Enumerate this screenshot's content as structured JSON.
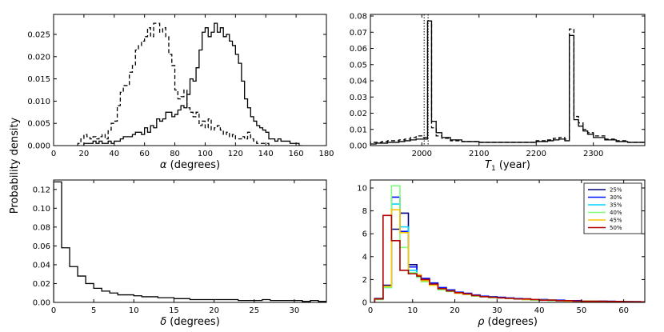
{
  "figure": {
    "ylabel": "Probability density"
  },
  "chart_data": [
    {
      "type": "line",
      "drawstyle": "steps",
      "title": "",
      "xlabel_symbol": "α",
      "xlabel_text": " (degrees)",
      "xlim": [
        0,
        180
      ],
      "ylim": [
        0,
        0.0295
      ],
      "xticks": [
        0,
        20,
        40,
        60,
        80,
        100,
        120,
        140,
        160,
        180
      ],
      "yticks": [
        0.0,
        0.005,
        0.01,
        0.015,
        0.02,
        0.025
      ],
      "ytick_labels": [
        "0.000",
        "0.005",
        "0.010",
        "0.015",
        "0.020",
        "0.025"
      ],
      "series": [
        {
          "name": "dashed",
          "dash": "5,3",
          "color": "#000000",
          "x": [
            16,
            18,
            20,
            22,
            24,
            26,
            28,
            30,
            32,
            34,
            36,
            38,
            40,
            42,
            44,
            46,
            48,
            50,
            52,
            54,
            56,
            58,
            60,
            62,
            64,
            66,
            68,
            70,
            72,
            74,
            76,
            78,
            80,
            82,
            84,
            86,
            88,
            90,
            92,
            94,
            96,
            98,
            100,
            102,
            104,
            106,
            108,
            110,
            112,
            114,
            116,
            118,
            120,
            122,
            124,
            126,
            128,
            130,
            132,
            134,
            136,
            138,
            140,
            142
          ],
          "values": [
            0.0005,
            0.0015,
            0.0025,
            0.002,
            0.0015,
            0.002,
            0.0015,
            0.002,
            0.0025,
            0.0015,
            0.0035,
            0.005,
            0.0055,
            0.009,
            0.012,
            0.0135,
            0.0135,
            0.0165,
            0.018,
            0.0215,
            0.0225,
            0.0235,
            0.0245,
            0.0265,
            0.0245,
            0.0275,
            0.0275,
            0.0255,
            0.0265,
            0.0245,
            0.0205,
            0.018,
            0.0125,
            0.0105,
            0.011,
            0.0125,
            0.0085,
            0.0075,
            0.0065,
            0.0075,
            0.0045,
            0.0055,
            0.004,
            0.006,
            0.0035,
            0.004,
            0.0045,
            0.0035,
            0.0025,
            0.003,
            0.002,
            0.0025,
            0.0015,
            0.0015,
            0.002,
            0.0015,
            0.003,
            0.0015,
            0.001,
            0.0005,
            0.0005,
            0.0005,
            0.0005,
            0.0
          ]
        },
        {
          "name": "solid",
          "dash": "",
          "color": "#000000",
          "x": [
            20,
            22,
            24,
            26,
            28,
            30,
            32,
            34,
            36,
            38,
            40,
            42,
            44,
            46,
            48,
            50,
            52,
            54,
            56,
            58,
            60,
            62,
            64,
            66,
            68,
            70,
            72,
            74,
            76,
            78,
            80,
            82,
            84,
            86,
            88,
            90,
            92,
            94,
            96,
            98,
            100,
            102,
            104,
            106,
            108,
            110,
            112,
            114,
            116,
            118,
            120,
            122,
            124,
            126,
            128,
            130,
            132,
            134,
            136,
            138,
            140,
            142,
            144,
            146,
            148,
            150,
            152,
            154,
            156,
            158,
            160,
            162
          ],
          "values": [
            0.0005,
            0.0005,
            0.0005,
            0.001,
            0.0005,
            0.001,
            0.0005,
            0.0005,
            0.001,
            0.0005,
            0.001,
            0.001,
            0.0015,
            0.002,
            0.002,
            0.002,
            0.0025,
            0.003,
            0.003,
            0.0025,
            0.004,
            0.003,
            0.0045,
            0.004,
            0.006,
            0.0055,
            0.006,
            0.0075,
            0.0075,
            0.0065,
            0.007,
            0.008,
            0.009,
            0.0085,
            0.0115,
            0.015,
            0.0145,
            0.0175,
            0.0215,
            0.0255,
            0.0265,
            0.0245,
            0.0255,
            0.0275,
            0.0255,
            0.0265,
            0.0245,
            0.025,
            0.0235,
            0.0225,
            0.0205,
            0.0185,
            0.0145,
            0.0105,
            0.0085,
            0.0065,
            0.0055,
            0.0045,
            0.004,
            0.0035,
            0.003,
            0.0015,
            0.0015,
            0.001,
            0.0015,
            0.001,
            0.001,
            0.001,
            0.0005,
            0.0005,
            0.0005,
            0.0
          ]
        }
      ]
    },
    {
      "type": "line",
      "drawstyle": "steps",
      "title": "",
      "xlabel_symbol": "T",
      "xlabel_sub": "1",
      "xlabel_text": " (year)",
      "xlim": [
        1910,
        2390
      ],
      "ylim": [
        0,
        0.081
      ],
      "xticks": [
        2000,
        2100,
        2200,
        2300
      ],
      "yticks": [
        0.0,
        0.01,
        0.02,
        0.03,
        0.04,
        0.05,
        0.06,
        0.07,
        0.08
      ],
      "ytick_labels": [
        "0.00",
        "0.01",
        "0.02",
        "0.03",
        "0.04",
        "0.05",
        "0.06",
        "0.07",
        "0.08"
      ],
      "vlines": [
        2004,
        2011
      ],
      "series": [
        {
          "name": "dashed",
          "dash": "5,3",
          "color": "#000000",
          "x": [
            1910,
            1920,
            1930,
            1940,
            1950,
            1960,
            1970,
            1980,
            1990,
            2000,
            2010,
            2017,
            2025,
            2035,
            2050,
            2070,
            2100,
            2150,
            2200,
            2220,
            2230,
            2240,
            2250,
            2258,
            2266,
            2274,
            2282,
            2290,
            2300,
            2320,
            2340,
            2360,
            2390
          ],
          "values": [
            0.002,
            0.002,
            0.0025,
            0.003,
            0.003,
            0.0035,
            0.004,
            0.005,
            0.006,
            0.005,
            0.077,
            0.011,
            0.006,
            0.0045,
            0.003,
            0.0025,
            0.002,
            0.002,
            0.003,
            0.0035,
            0.0045,
            0.005,
            0.004,
            0.072,
            0.018,
            0.014,
            0.01,
            0.008,
            0.006,
            0.004,
            0.003,
            0.002,
            0.002
          ]
        },
        {
          "name": "solid",
          "dash": "",
          "color": "#000000",
          "x": [
            1910,
            1920,
            1930,
            1940,
            1950,
            1960,
            1970,
            1980,
            1990,
            2000,
            2010,
            2017,
            2025,
            2035,
            2050,
            2070,
            2100,
            2150,
            2200,
            2220,
            2230,
            2240,
            2250,
            2258,
            2266,
            2274,
            2282,
            2290,
            2300,
            2320,
            2340,
            2360,
            2390
          ],
          "values": [
            0.001,
            0.0015,
            0.0015,
            0.002,
            0.002,
            0.0025,
            0.003,
            0.0035,
            0.004,
            0.004,
            0.077,
            0.015,
            0.008,
            0.005,
            0.0035,
            0.0025,
            0.002,
            0.002,
            0.0025,
            0.003,
            0.0035,
            0.004,
            0.003,
            0.068,
            0.016,
            0.012,
            0.009,
            0.007,
            0.005,
            0.0035,
            0.0025,
            0.002,
            0.002
          ]
        }
      ]
    },
    {
      "type": "line",
      "drawstyle": "steps",
      "title": "",
      "xlabel_symbol": "δ",
      "xlabel_text": " (degrees)",
      "xlim": [
        0,
        34
      ],
      "ylim": [
        0,
        0.13
      ],
      "xticks": [
        0,
        5,
        10,
        15,
        20,
        25,
        30
      ],
      "yticks": [
        0.0,
        0.02,
        0.04,
        0.06,
        0.08,
        0.1,
        0.12
      ],
      "ytick_labels": [
        "0.00",
        "0.02",
        "0.04",
        "0.06",
        "0.08",
        "0.10",
        "0.12"
      ],
      "series": [
        {
          "name": "solid",
          "dash": "",
          "color": "#000000",
          "x": [
            0,
            1,
            2,
            3,
            4,
            5,
            6,
            7,
            8,
            9,
            10,
            11,
            12,
            13,
            14,
            15,
            16,
            17,
            18,
            19,
            20,
            21,
            22,
            23,
            24,
            25,
            26,
            27,
            28,
            29,
            30,
            31,
            32,
            33,
            34
          ],
          "values": [
            0.128,
            0.058,
            0.038,
            0.028,
            0.02,
            0.015,
            0.012,
            0.01,
            0.008,
            0.008,
            0.007,
            0.006,
            0.006,
            0.005,
            0.005,
            0.004,
            0.004,
            0.003,
            0.003,
            0.003,
            0.003,
            0.003,
            0.003,
            0.002,
            0.002,
            0.002,
            0.003,
            0.002,
            0.002,
            0.002,
            0.002,
            0.001,
            0.002,
            0.001,
            0.0
          ]
        }
      ]
    },
    {
      "type": "line",
      "drawstyle": "steps",
      "title": "",
      "xlabel_symbol": "ρ",
      "xlabel_text": " (degrees)",
      "xlim": [
        0,
        65
      ],
      "ylim": [
        0,
        10.7
      ],
      "xticks": [
        0,
        10,
        20,
        30,
        40,
        50,
        60
      ],
      "yticks": [
        0,
        2,
        4,
        6,
        8,
        10
      ],
      "ytick_labels": [
        "0",
        "2",
        "4",
        "6",
        "8",
        "10"
      ],
      "legend": [
        "25%",
        "30%",
        "35%",
        "40%",
        "45%",
        "50%"
      ],
      "legend_loc": "upper right",
      "tail_x": [
        12,
        14,
        16,
        18,
        20,
        22,
        24,
        26,
        28,
        30,
        32,
        34,
        36,
        38,
        40,
        42,
        44,
        46,
        48,
        50,
        52,
        54,
        56,
        58,
        60,
        62,
        64
      ],
      "series": [
        {
          "name": "25%",
          "color": "#00007f",
          "dash": "",
          "x": [
            1,
            3,
            5,
            7,
            9,
            11
          ],
          "values": [
            0.35,
            1.5,
            6.4,
            7.8,
            3.3,
            2.4
          ],
          "tail": [
            2.0,
            1.6,
            1.2,
            1.0,
            0.85,
            0.75,
            0.6,
            0.5,
            0.45,
            0.4,
            0.35,
            0.3,
            0.3,
            0.25,
            0.2,
            0.2,
            0.15,
            0.15,
            0.12,
            0.12,
            0.1,
            0.1,
            0.08,
            0.08,
            0.06,
            0.06,
            0.05
          ]
        },
        {
          "name": "30%",
          "color": "#0010ff",
          "dash": "",
          "x": [
            1,
            3,
            5,
            7,
            9,
            11
          ],
          "values": [
            0.3,
            1.4,
            9.2,
            6.2,
            3.1,
            2.3
          ],
          "tail": [
            2.1,
            1.7,
            1.3,
            1.1,
            0.9,
            0.8,
            0.65,
            0.55,
            0.5,
            0.45,
            0.4,
            0.35,
            0.3,
            0.25,
            0.25,
            0.2,
            0.2,
            0.15,
            0.15,
            0.12,
            0.12,
            0.1,
            0.1,
            0.08,
            0.08,
            0.06,
            0.05
          ]
        },
        {
          "name": "35%",
          "color": "#00d4ff",
          "dash": "",
          "x": [
            1,
            3,
            5,
            7,
            9,
            11
          ],
          "values": [
            0.3,
            1.3,
            8.6,
            6.6,
            2.8,
            2.2
          ],
          "tail": [
            1.9,
            1.5,
            1.2,
            1.0,
            0.85,
            0.7,
            0.6,
            0.5,
            0.45,
            0.4,
            0.35,
            0.3,
            0.25,
            0.25,
            0.2,
            0.2,
            0.15,
            0.15,
            0.12,
            0.1,
            0.1,
            0.1,
            0.08,
            0.08,
            0.06,
            0.05,
            0.05
          ]
        },
        {
          "name": "40%",
          "color": "#7dff7a",
          "dash": "",
          "x": [
            1,
            3,
            5,
            7,
            9,
            11
          ],
          "values": [
            0.25,
            1.3,
            10.2,
            4.8,
            2.6,
            2.2
          ],
          "tail": [
            1.8,
            1.5,
            1.1,
            0.95,
            0.8,
            0.7,
            0.55,
            0.5,
            0.4,
            0.4,
            0.35,
            0.3,
            0.25,
            0.2,
            0.2,
            0.15,
            0.15,
            0.12,
            0.12,
            0.1,
            0.1,
            0.08,
            0.08,
            0.06,
            0.06,
            0.05,
            0.04
          ]
        },
        {
          "name": "45%",
          "color": "#ffc400",
          "dash": "",
          "x": [
            1,
            3,
            5,
            7,
            9,
            11
          ],
          "values": [
            0.3,
            1.4,
            8.1,
            6.1,
            2.5,
            2.4
          ],
          "tail": [
            1.9,
            1.5,
            1.2,
            1.0,
            0.8,
            0.7,
            0.6,
            0.5,
            0.45,
            0.4,
            0.35,
            0.3,
            0.25,
            0.25,
            0.2,
            0.2,
            0.15,
            0.12,
            0.12,
            0.1,
            0.1,
            0.08,
            0.08,
            0.06,
            0.06,
            0.05,
            0.04
          ]
        },
        {
          "name": "50%",
          "color": "#b20000",
          "dash": "",
          "x": [
            1,
            3,
            5,
            7,
            9,
            11
          ],
          "values": [
            0.3,
            7.6,
            5.4,
            2.8,
            2.5,
            2.3
          ],
          "tail": [
            2.0,
            1.6,
            1.2,
            1.0,
            0.85,
            0.75,
            0.6,
            0.5,
            0.45,
            0.4,
            0.35,
            0.3,
            0.3,
            0.25,
            0.2,
            0.2,
            0.15,
            0.15,
            0.12,
            0.1,
            0.1,
            0.1,
            0.08,
            0.08,
            0.06,
            0.06,
            0.05
          ]
        }
      ]
    }
  ]
}
